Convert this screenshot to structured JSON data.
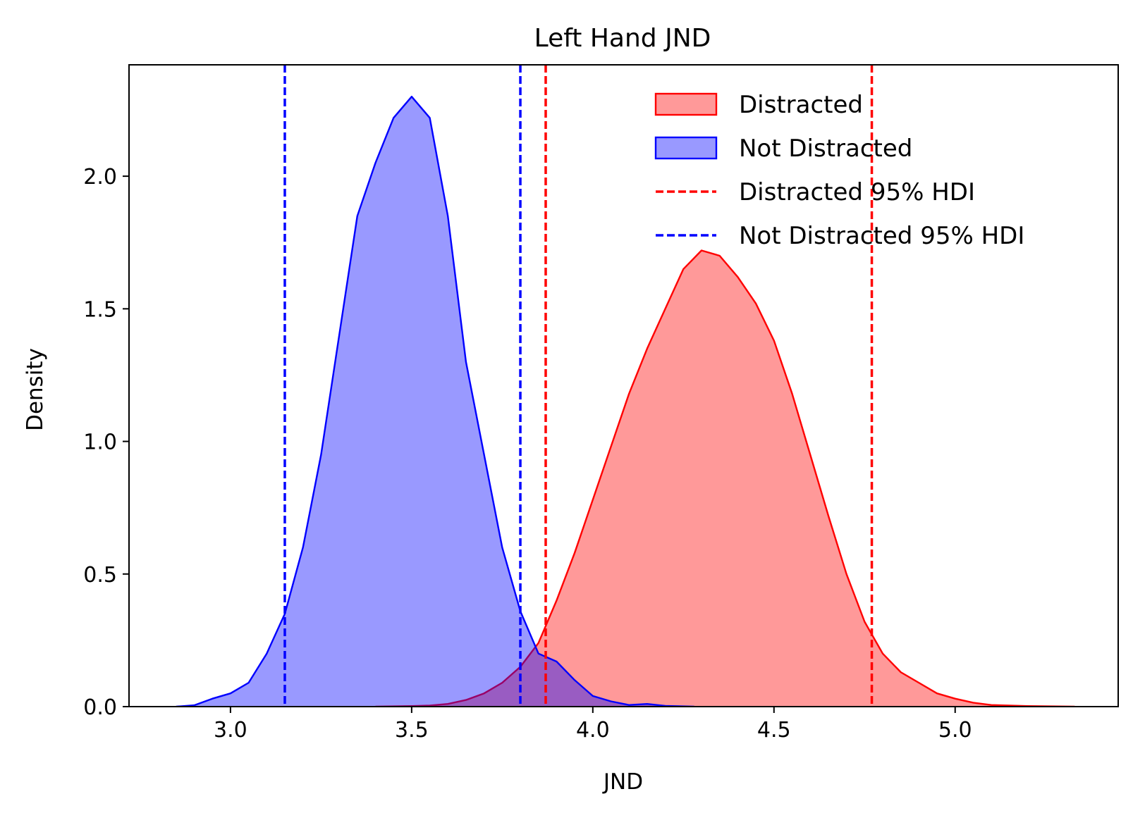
{
  "chart_data": {
    "type": "area",
    "title": "Left Hand JND",
    "xlabel": "JND",
    "ylabel": "Density",
    "xlim": [
      2.72,
      5.45
    ],
    "ylim": [
      0.0,
      2.42
    ],
    "xticks": [
      3.0,
      3.5,
      4.0,
      4.5,
      5.0
    ],
    "xtick_labels": [
      "3.0",
      "3.5",
      "4.0",
      "4.5",
      "5.0"
    ],
    "yticks": [
      0.0,
      0.5,
      1.0,
      1.5,
      2.0
    ],
    "ytick_labels": [
      "0.0",
      "0.5",
      "1.0",
      "1.5",
      "2.0"
    ],
    "grid": false,
    "legend_position": "top-right",
    "series": [
      {
        "name": "Distracted",
        "color": "#ff0000",
        "fill": "#ff9999",
        "x": [
          3.4,
          3.5,
          3.55,
          3.6,
          3.65,
          3.7,
          3.75,
          3.8,
          3.85,
          3.9,
          3.95,
          4.0,
          4.05,
          4.1,
          4.15,
          4.2,
          4.25,
          4.3,
          4.35,
          4.4,
          4.45,
          4.5,
          4.55,
          4.6,
          4.65,
          4.7,
          4.75,
          4.8,
          4.85,
          4.9,
          4.95,
          5.0,
          5.05,
          5.1,
          5.2,
          5.33
        ],
        "y": [
          0.0,
          0.002,
          0.004,
          0.01,
          0.025,
          0.05,
          0.09,
          0.15,
          0.24,
          0.4,
          0.58,
          0.78,
          0.98,
          1.18,
          1.35,
          1.5,
          1.65,
          1.72,
          1.7,
          1.62,
          1.52,
          1.38,
          1.18,
          0.95,
          0.72,
          0.5,
          0.32,
          0.2,
          0.13,
          0.09,
          0.05,
          0.03,
          0.015,
          0.006,
          0.002,
          0.0
        ]
      },
      {
        "name": "Not Distracted",
        "color": "#0000ff",
        "fill": "#9999ff",
        "x": [
          2.85,
          2.9,
          2.95,
          3.0,
          3.05,
          3.1,
          3.15,
          3.2,
          3.25,
          3.3,
          3.35,
          3.4,
          3.45,
          3.5,
          3.55,
          3.6,
          3.65,
          3.7,
          3.75,
          3.8,
          3.85,
          3.9,
          3.95,
          4.0,
          4.05,
          4.1,
          4.15,
          4.2,
          4.28
        ],
        "y": [
          0.0,
          0.005,
          0.03,
          0.05,
          0.09,
          0.2,
          0.35,
          0.6,
          0.95,
          1.4,
          1.85,
          2.05,
          2.22,
          2.3,
          2.22,
          1.85,
          1.3,
          0.95,
          0.6,
          0.36,
          0.2,
          0.17,
          0.1,
          0.04,
          0.02,
          0.006,
          0.01,
          0.003,
          0.0
        ]
      }
    ],
    "hdi_lines": [
      {
        "name": "Distracted 95% HDI",
        "color": "#ff0000",
        "x": [
          3.87,
          4.77
        ]
      },
      {
        "name": "Not Distracted 95% HDI",
        "color": "#0000ff",
        "x": [
          3.15,
          3.8
        ]
      }
    ]
  }
}
